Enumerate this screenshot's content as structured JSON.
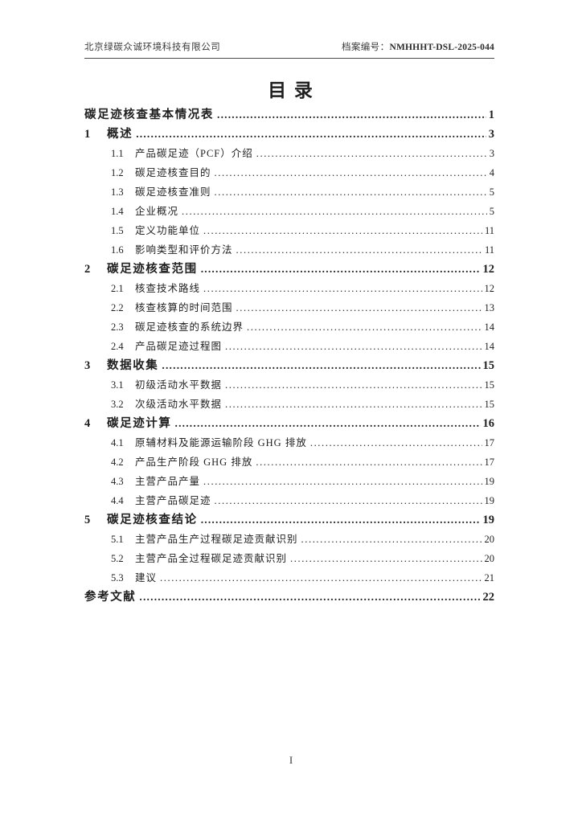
{
  "header": {
    "company": "北京绿碳众诚环境科技有限公司",
    "doc_no_label": "档案编号：",
    "doc_no": "NMHHHT-DSL-2025-044"
  },
  "title": "目 录",
  "toc": {
    "entries": [
      {
        "num": "",
        "label": "碳足迹核查基本情况表",
        "page": "1",
        "level": 0,
        "bold": true
      },
      {
        "num": "1",
        "label": "概述",
        "page": "3",
        "level": 1,
        "bold": true
      },
      {
        "num": "1.1",
        "label": "产品碳足迹（PCF）介绍",
        "page": "3",
        "level": 2,
        "bold": false
      },
      {
        "num": "1.2",
        "label": "碳足迹核查目的",
        "page": "4",
        "level": 2,
        "bold": false
      },
      {
        "num": "1.3",
        "label": "碳足迹核查准则",
        "page": "5",
        "level": 2,
        "bold": false
      },
      {
        "num": "1.4",
        "label": "企业概况",
        "page": "5",
        "level": 2,
        "bold": false
      },
      {
        "num": "1.5",
        "label": "定义功能单位",
        "page": "11",
        "level": 2,
        "bold": false
      },
      {
        "num": "1.6",
        "label": "影响类型和评价方法",
        "page": "11",
        "level": 2,
        "bold": false
      },
      {
        "num": "2",
        "label": "碳足迹核查范围",
        "page": "12",
        "level": 1,
        "bold": true
      },
      {
        "num": "2.1",
        "label": "核查技术路线",
        "page": "12",
        "level": 2,
        "bold": false
      },
      {
        "num": "2.2",
        "label": "核查核算的时间范围",
        "page": "13",
        "level": 2,
        "bold": false
      },
      {
        "num": "2.3",
        "label": "碳足迹核查的系统边界",
        "page": "14",
        "level": 2,
        "bold": false
      },
      {
        "num": "2.4",
        "label": "产品碳足迹过程图",
        "page": "14",
        "level": 2,
        "bold": false
      },
      {
        "num": "3",
        "label": "数据收集",
        "page": "15",
        "level": 1,
        "bold": true
      },
      {
        "num": "3.1",
        "label": "初级活动水平数据",
        "page": "15",
        "level": 2,
        "bold": false
      },
      {
        "num": "3.2",
        "label": "次级活动水平数据",
        "page": "15",
        "level": 2,
        "bold": false
      },
      {
        "num": "4",
        "label": "碳足迹计算",
        "page": "16",
        "level": 1,
        "bold": true
      },
      {
        "num": "4.1",
        "label": "原辅材料及能源运输阶段 GHG 排放",
        "page": "17",
        "level": 2,
        "bold": false
      },
      {
        "num": "4.2",
        "label": "产品生产阶段 GHG 排放",
        "page": "17",
        "level": 2,
        "bold": false
      },
      {
        "num": "4.3",
        "label": "主营产品产量",
        "page": "19",
        "level": 2,
        "bold": false
      },
      {
        "num": "4.4",
        "label": "主营产品碳足迹",
        "page": "19",
        "level": 2,
        "bold": false
      },
      {
        "num": "5",
        "label": "碳足迹核查结论",
        "page": "19",
        "level": 1,
        "bold": true
      },
      {
        "num": "5.1",
        "label": "主营产品生产过程碳足迹贡献识别",
        "page": "20",
        "level": 2,
        "bold": false
      },
      {
        "num": "5.2",
        "label": "主营产品全过程碳足迹贡献识别",
        "page": "20",
        "level": 2,
        "bold": false
      },
      {
        "num": "5.3",
        "label": "建议",
        "page": "21",
        "level": 2,
        "bold": false
      },
      {
        "num": "",
        "label": "参考文献",
        "page": "22",
        "level": 0,
        "bold": true
      }
    ]
  },
  "footer": {
    "page_number": "I"
  }
}
